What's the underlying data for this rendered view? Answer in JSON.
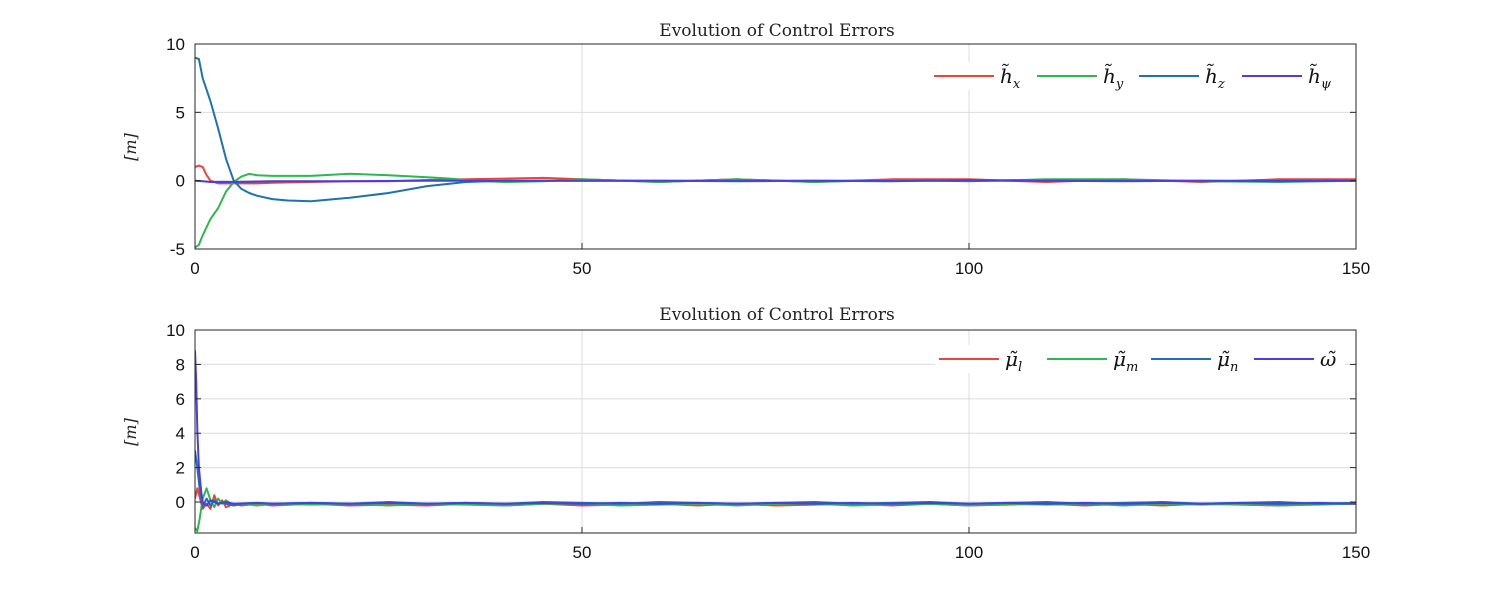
{
  "figure": {
    "background": "#ffffff"
  },
  "chart_data": [
    {
      "type": "line",
      "title": "Evolution of Control Errors",
      "xlabel": "",
      "ylabel": "[m]",
      "xlim": [
        0,
        150
      ],
      "ylim": [
        -5,
        10
      ],
      "xticks": [
        0,
        50,
        100,
        150
      ],
      "yticks": [
        -5,
        0,
        5,
        10
      ],
      "xtick_labels": [
        "0",
        "50",
        "100",
        "150"
      ],
      "ytick_labels": [
        "-5",
        "0",
        "5",
        "10"
      ],
      "grid": true,
      "legend_position": "top-right",
      "series": [
        {
          "name": "h̃x",
          "base": "h̃",
          "sub": "x",
          "color": "#e8463a",
          "x": [
            0,
            0.5,
            1,
            1.5,
            2,
            3,
            5,
            8,
            10,
            15,
            20,
            25,
            30,
            35,
            40,
            45,
            50,
            60,
            70,
            80,
            90,
            100,
            110,
            120,
            130,
            140,
            150
          ],
          "y": [
            1.0,
            1.1,
            1.0,
            0.4,
            0.0,
            -0.2,
            -0.2,
            -0.2,
            -0.15,
            -0.1,
            -0.05,
            -0.05,
            0.05,
            0.1,
            0.15,
            0.2,
            0.1,
            -0.1,
            0.1,
            -0.1,
            0.1,
            0.1,
            -0.1,
            0.1,
            -0.1,
            0.1,
            0.1
          ]
        },
        {
          "name": "h̃y",
          "base": "h̃",
          "sub": "y",
          "color": "#2db84d",
          "x": [
            0,
            0.5,
            1,
            2,
            3,
            4,
            5,
            6,
            7,
            8,
            10,
            15,
            20,
            25,
            30,
            33,
            36,
            40,
            45,
            50,
            60,
            70,
            80,
            90,
            100,
            110,
            120,
            130,
            140,
            150
          ],
          "y": [
            -4.9,
            -4.7,
            -4.0,
            -2.8,
            -2.0,
            -0.8,
            -0.1,
            0.3,
            0.5,
            0.4,
            0.35,
            0.35,
            0.5,
            0.4,
            0.25,
            0.15,
            0.0,
            -0.1,
            -0.05,
            0.1,
            -0.1,
            0.1,
            -0.1,
            0.05,
            -0.05,
            0.1,
            0.1,
            -0.05,
            -0.1,
            0.0
          ]
        },
        {
          "name": "h̃z",
          "base": "h̃",
          "sub": "z",
          "color": "#1f72b0",
          "x": [
            0,
            0.5,
            1,
            2,
            3,
            4,
            5,
            6,
            7,
            8,
            10,
            12,
            15,
            18,
            20,
            25,
            30,
            35,
            40,
            45,
            50,
            60,
            70,
            80,
            90,
            100,
            110,
            120,
            130,
            140,
            150
          ],
          "y": [
            9.0,
            8.9,
            7.5,
            5.8,
            3.8,
            1.6,
            0.0,
            -0.6,
            -0.9,
            -1.1,
            -1.35,
            -1.45,
            -1.5,
            -1.35,
            -1.25,
            -0.9,
            -0.4,
            -0.1,
            0.0,
            0.0,
            0.0,
            0.0,
            -0.05,
            0.0,
            -0.05,
            0.05,
            0.0,
            -0.05,
            0.0,
            -0.05,
            0.0
          ]
        },
        {
          "name": "h̃ψ",
          "base": "h̃",
          "sub": "ψ",
          "color": "#4a3ee0",
          "x": [
            0,
            1,
            2,
            5,
            10,
            20,
            30,
            40,
            50,
            60,
            70,
            80,
            90,
            100,
            110,
            120,
            130,
            140,
            150
          ],
          "y": [
            0.0,
            -0.05,
            -0.1,
            -0.1,
            -0.05,
            -0.05,
            0.0,
            0.0,
            0.0,
            0.0,
            0.0,
            0.0,
            0.0,
            0.0,
            0.0,
            0.0,
            0.0,
            0.0,
            0.0
          ]
        }
      ]
    },
    {
      "type": "line",
      "title": "Evolution of Control Errors",
      "xlabel": "",
      "ylabel": "[m]",
      "xlim": [
        0,
        150
      ],
      "ylim": [
        -1.8,
        10
      ],
      "xticks": [
        0,
        50,
        100,
        150
      ],
      "yticks": [
        0,
        2,
        4,
        6,
        8,
        10
      ],
      "xtick_labels": [
        "0",
        "50",
        "100",
        "150"
      ],
      "ytick_labels": [
        "0",
        "2",
        "4",
        "6",
        "8",
        "10"
      ],
      "grid": true,
      "legend_position": "top-right",
      "series": [
        {
          "name": "μ̃l",
          "base": "μ̃",
          "sub": "l",
          "color": "#e8463a",
          "x": [
            0,
            0.3,
            0.6,
            1,
            1.5,
            2,
            2.5,
            3,
            3.5,
            4,
            5,
            6,
            8,
            10,
            15,
            20,
            25,
            30,
            35,
            40,
            45,
            50,
            55,
            60,
            65,
            70,
            75,
            80,
            85,
            90,
            95,
            100,
            105,
            110,
            115,
            120,
            125,
            130,
            135,
            140,
            145,
            150
          ],
          "y": [
            0.2,
            0.8,
            0.3,
            -0.4,
            -0.1,
            -0.4,
            0.4,
            -0.2,
            0.1,
            -0.3,
            -0.1,
            -0.2,
            -0.1,
            -0.2,
            -0.1,
            -0.2,
            -0.15,
            -0.2,
            -0.1,
            -0.2,
            -0.1,
            -0.2,
            -0.15,
            -0.1,
            -0.2,
            -0.1,
            -0.2,
            -0.15,
            -0.1,
            -0.2,
            -0.1,
            -0.2,
            -0.15,
            -0.1,
            -0.2,
            -0.1,
            -0.2,
            -0.1,
            -0.15,
            -0.2,
            -0.1,
            -0.1
          ]
        },
        {
          "name": "μ̃m",
          "base": "μ̃",
          "sub": "m",
          "color": "#2db84d",
          "x": [
            0,
            0.3,
            0.6,
            1,
            1.5,
            2,
            2.5,
            3,
            3.5,
            4,
            5,
            6,
            8,
            10,
            15,
            20,
            25,
            30,
            35,
            40,
            45,
            50,
            55,
            60,
            65,
            70,
            75,
            80,
            85,
            90,
            95,
            100,
            105,
            110,
            115,
            120,
            125,
            130,
            135,
            140,
            145,
            150
          ],
          "y": [
            -1.5,
            -1.7,
            -1.0,
            0.2,
            0.8,
            0.1,
            -0.3,
            0.2,
            -0.1,
            0.1,
            -0.2,
            -0.1,
            -0.2,
            -0.1,
            -0.15,
            -0.1,
            -0.2,
            -0.1,
            -0.15,
            -0.2,
            -0.1,
            -0.1,
            -0.2,
            -0.15,
            -0.1,
            -0.2,
            -0.1,
            -0.1,
            -0.2,
            -0.15,
            -0.1,
            -0.2,
            -0.1,
            -0.15,
            -0.1,
            -0.2,
            -0.1,
            -0.15,
            -0.1,
            -0.2,
            -0.15,
            -0.1
          ]
        },
        {
          "name": "μ̃n",
          "base": "μ̃",
          "sub": "n",
          "color": "#1f72b0",
          "x": [
            0,
            0.3,
            0.6,
            1,
            1.5,
            2,
            2.5,
            3,
            3.5,
            4,
            5,
            6,
            8,
            10,
            15,
            20,
            25,
            30,
            35,
            40,
            45,
            50,
            55,
            60,
            65,
            70,
            75,
            80,
            85,
            90,
            95,
            100,
            105,
            110,
            115,
            120,
            125,
            130,
            135,
            140,
            145,
            150
          ],
          "y": [
            3.0,
            2.0,
            0.8,
            -0.3,
            0.2,
            -0.2,
            0.1,
            -0.1,
            0.0,
            -0.1,
            -0.2,
            -0.1,
            -0.05,
            -0.1,
            -0.05,
            -0.1,
            0.0,
            -0.1,
            -0.05,
            -0.1,
            0.0,
            -0.05,
            -0.1,
            0.0,
            -0.05,
            -0.1,
            -0.05,
            0.0,
            -0.1,
            -0.05,
            0.0,
            -0.1,
            -0.05,
            0.0,
            -0.1,
            -0.05,
            0.0,
            -0.1,
            -0.05,
            0.0,
            -0.1,
            -0.05
          ]
        },
        {
          "name": "ω̃",
          "base": "ω̃",
          "sub": "",
          "color": "#4a3ee0",
          "x": [
            0,
            0.15,
            0.3,
            0.5,
            0.8,
            1,
            1.5,
            2,
            3,
            4,
            5,
            8,
            10,
            15,
            20,
            25,
            30,
            35,
            40,
            45,
            50,
            55,
            60,
            65,
            70,
            75,
            80,
            85,
            90,
            95,
            100,
            105,
            110,
            115,
            120,
            125,
            130,
            135,
            140,
            145,
            150
          ],
          "y": [
            8.8,
            7.0,
            4.2,
            2.0,
            0.6,
            0.0,
            -0.2,
            0.1,
            -0.1,
            0.0,
            -0.1,
            -0.05,
            -0.1,
            -0.05,
            -0.1,
            -0.05,
            -0.1,
            -0.05,
            -0.1,
            -0.05,
            -0.1,
            -0.05,
            -0.1,
            -0.05,
            -0.1,
            -0.05,
            -0.1,
            -0.05,
            -0.1,
            -0.05,
            -0.1,
            -0.05,
            -0.1,
            -0.05,
            -0.1,
            -0.05,
            -0.1,
            -0.05,
            -0.1,
            -0.05,
            -0.1
          ]
        }
      ]
    }
  ]
}
